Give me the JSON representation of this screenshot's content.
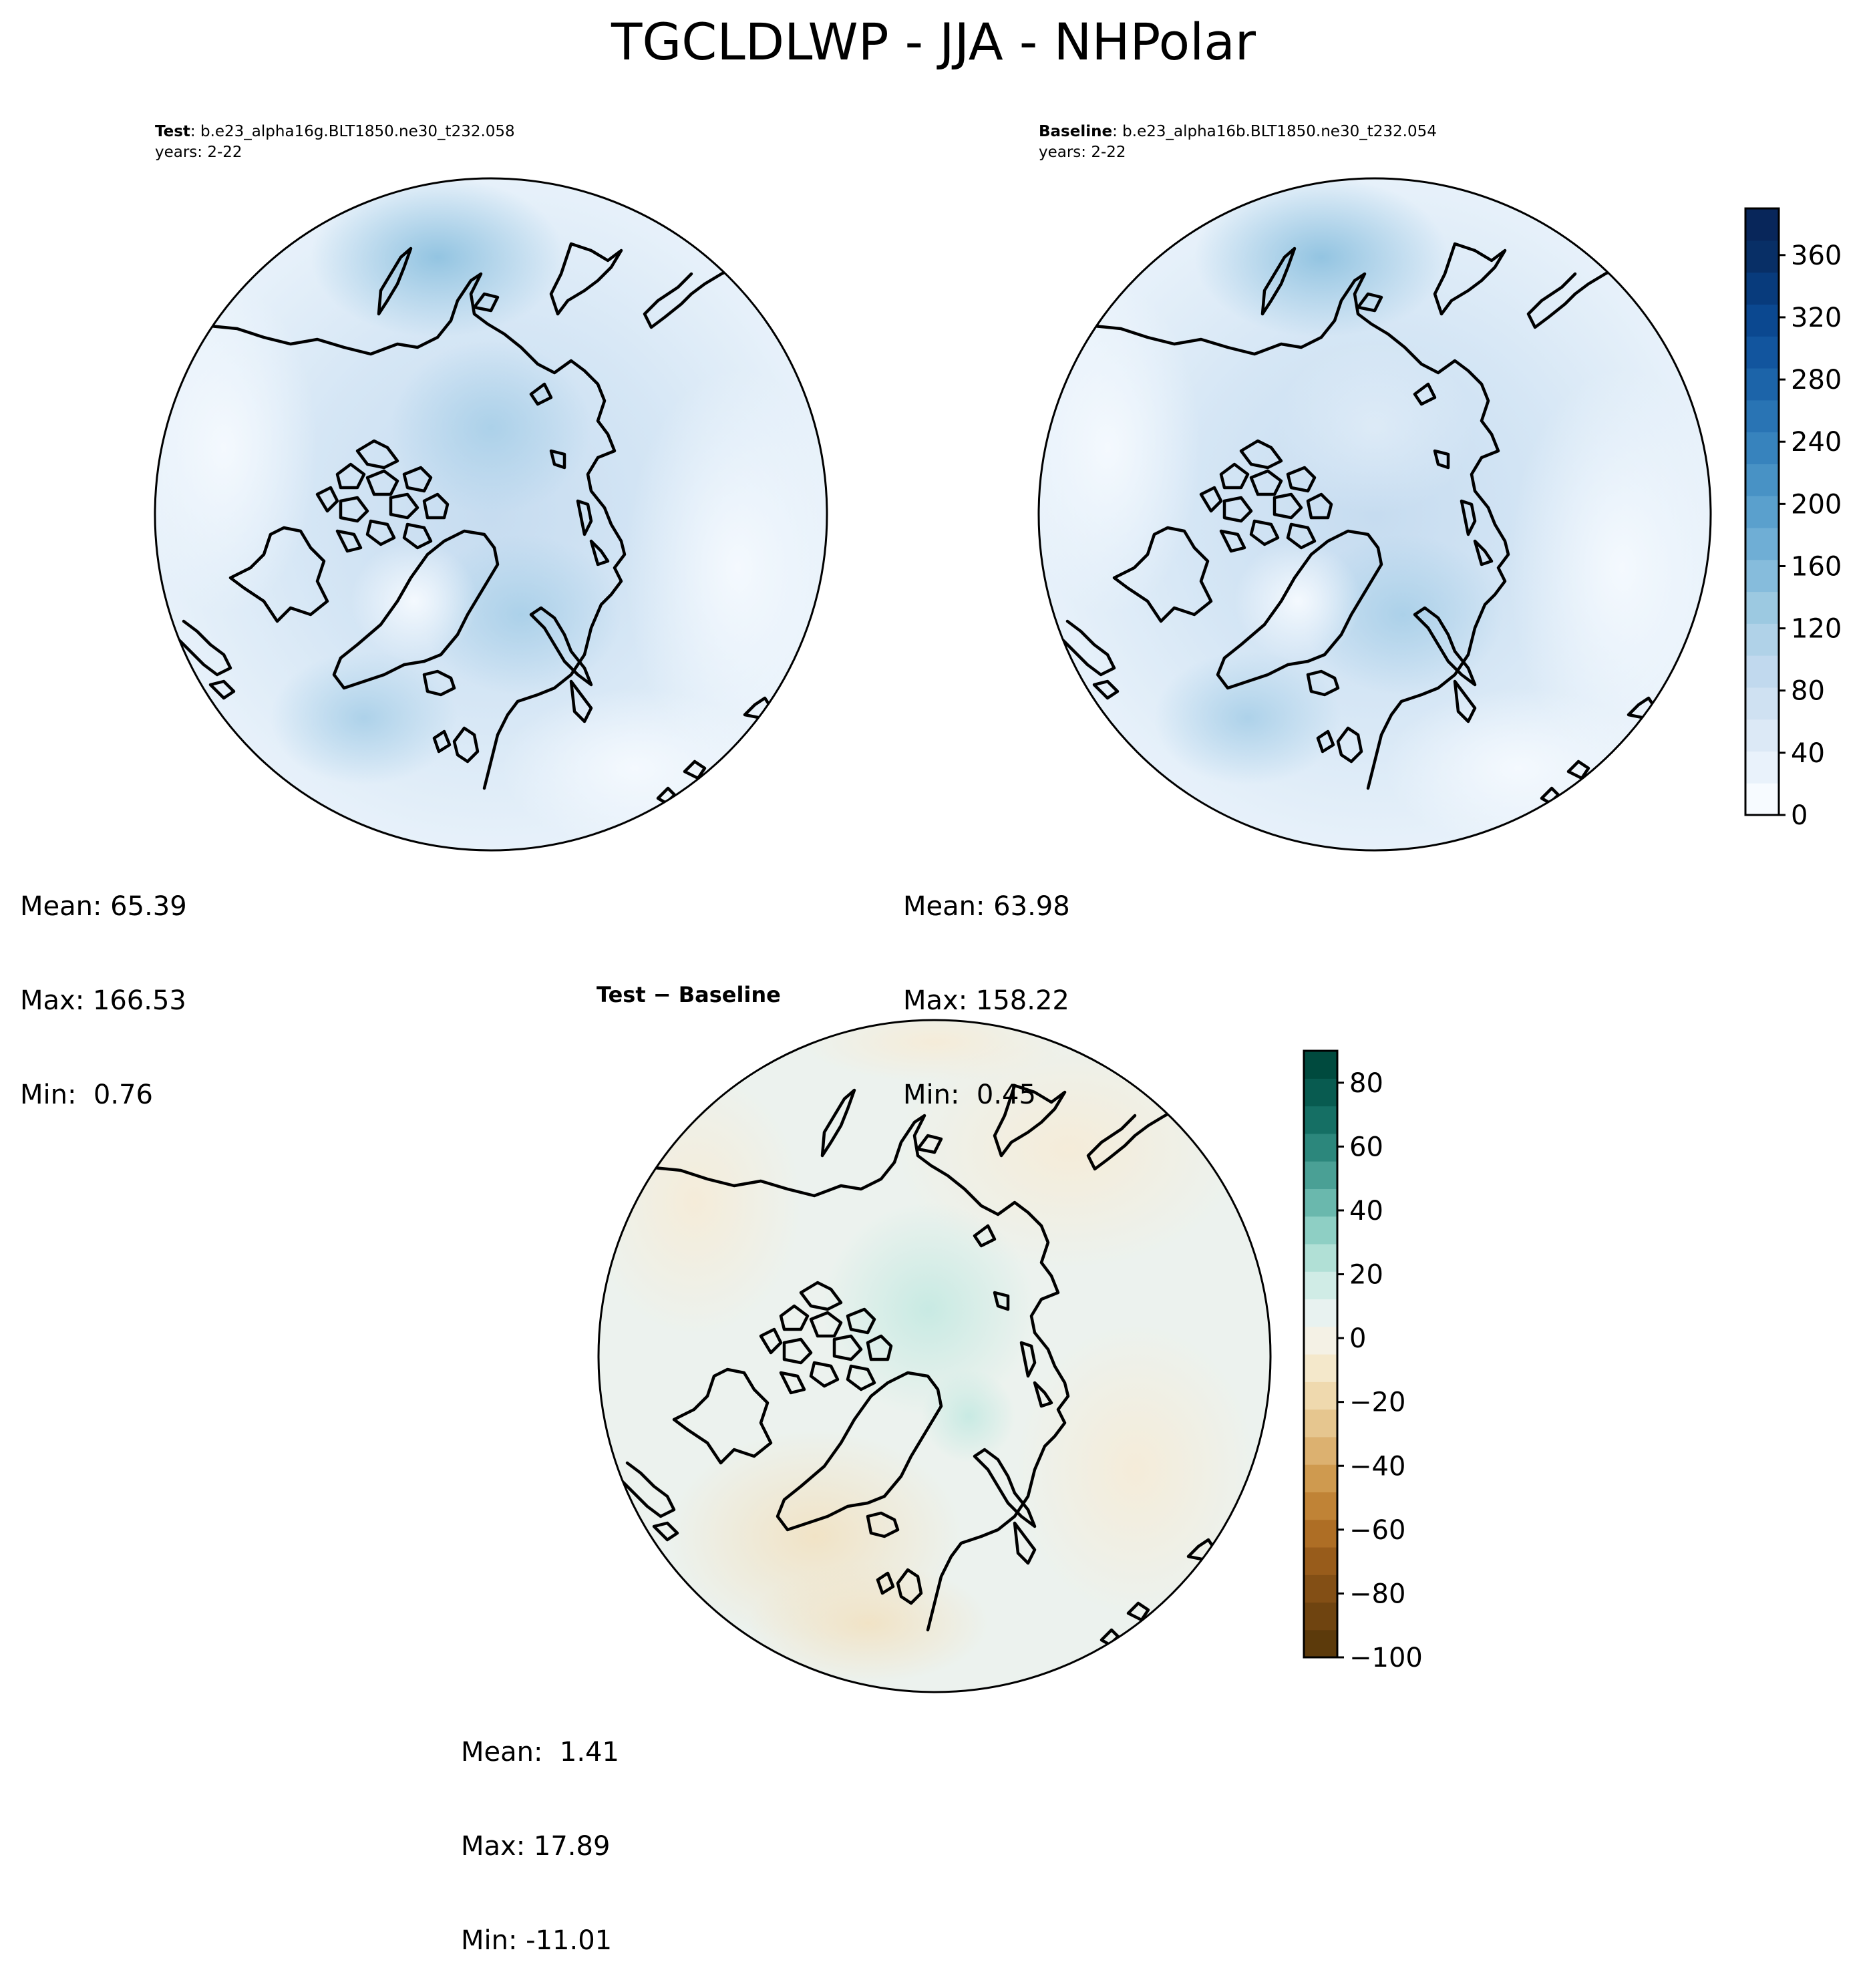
{
  "figure": {
    "title": "TGCLDLWP - JJA - NHPolar"
  },
  "panels": [
    {
      "id": "test",
      "case_label": "Test",
      "case_name": ": b.e23_alpha16g.BLT1850.ne30_t232.058",
      "years": "years: 2-22",
      "stats": {
        "mean": "Mean: 65.39",
        "max": "Max: 166.53",
        "min": "Min:  0.76"
      }
    },
    {
      "id": "baseline",
      "case_label": "Baseline",
      "case_name": ": b.e23_alpha16b.BLT1850.ne30_t232.054",
      "years": "years: 2-22",
      "stats": {
        "mean": "Mean: 63.98",
        "max": "Max: 158.22",
        "min": "Min:  0.45"
      }
    },
    {
      "id": "difference",
      "title": "Test − Baseline",
      "stats": {
        "mean": "Mean:  1.41",
        "max": "Max: 17.89",
        "min": "Min: -11.01"
      }
    }
  ],
  "colorbars": {
    "absolute": {
      "colormap": "Blues",
      "range": [
        0,
        390
      ],
      "ticks": [
        "0",
        "40",
        "80",
        "120",
        "160",
        "200",
        "240",
        "280",
        "320",
        "360"
      ],
      "tick_values": [
        0,
        40,
        80,
        120,
        160,
        200,
        240,
        280,
        320,
        360
      ],
      "colors": [
        "#f7fbff",
        "#e9f2fb",
        "#dce9f6",
        "#cfe1f2",
        "#c1d9ee",
        "#b0d2e8",
        "#9cc9e1",
        "#86bcdc",
        "#6faed5",
        "#5aa0cd",
        "#4892c5",
        "#3783bd",
        "#2974b4",
        "#1c64a9",
        "#12559e",
        "#0b4890",
        "#083b7c",
        "#082f66",
        "#08265a"
      ]
    },
    "difference": {
      "colormap": "BrBG",
      "range": [
        -100,
        90
      ],
      "ticks": [
        "−100",
        "−80",
        "−60",
        "−40",
        "−20",
        "0",
        "20",
        "40",
        "60",
        "80"
      ],
      "tick_values": [
        -100,
        -80,
        -60,
        -40,
        -20,
        0,
        20,
        40,
        60,
        80
      ],
      "colors": [
        "#5c3a0b",
        "#6f4410",
        "#834f15",
        "#985c1b",
        "#ae6e25",
        "#c08336",
        "#cf9a4f",
        "#dcb170",
        "#e6c68f",
        "#efd9ae",
        "#f4e8cb",
        "#f4f1e5",
        "#e8f2f0",
        "#d0ece6",
        "#b1e0d6",
        "#8ecfc4",
        "#6ab8ad",
        "#4aa095",
        "#2c877c",
        "#156f64",
        "#085b50",
        "#004a3e"
      ]
    }
  }
}
